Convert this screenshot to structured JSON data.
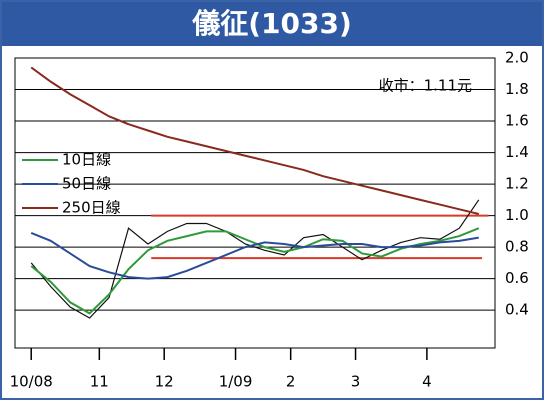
{
  "chart_data": {
    "type": "line",
    "title": "儀征(1033)",
    "annotation": "收市：1.11元",
    "xlim": [
      -5,
      143
    ],
    "ylim": [
      0.16,
      2.0
    ],
    "xticks": [
      {
        "value": 0,
        "label": "10/08"
      },
      {
        "value": 21,
        "label": "11"
      },
      {
        "value": 41,
        "label": "12"
      },
      {
        "value": 63,
        "label": "1/09"
      },
      {
        "value": 80,
        "label": "2"
      },
      {
        "value": 100,
        "label": "3"
      },
      {
        "value": 122,
        "label": "4"
      }
    ],
    "yticks": [
      0.4,
      0.6,
      0.8,
      {
        "value": 1.0,
        "label": "1.0"
      },
      1.2,
      1.4,
      1.6,
      1.8,
      {
        "value": 2.0,
        "label": "2.0"
      }
    ],
    "grid": true,
    "legend": "upper left",
    "x": [
      0,
      6,
      12,
      18,
      24,
      30,
      36,
      42,
      48,
      54,
      60,
      66,
      72,
      78,
      84,
      90,
      96,
      102,
      108,
      114,
      120,
      126,
      132,
      138
    ],
    "price": {
      "color": "#111111",
      "values": [
        0.7,
        0.55,
        0.42,
        0.35,
        0.48,
        0.92,
        0.82,
        0.9,
        0.95,
        0.95,
        0.9,
        0.82,
        0.78,
        0.75,
        0.86,
        0.88,
        0.8,
        0.72,
        0.78,
        0.83,
        0.86,
        0.85,
        0.92,
        1.1
      ]
    },
    "series": [
      {
        "name": "10日線",
        "color": "#2e9a3a",
        "values": [
          0.68,
          0.58,
          0.45,
          0.38,
          0.5,
          0.66,
          0.78,
          0.84,
          0.87,
          0.9,
          0.9,
          0.85,
          0.8,
          0.77,
          0.8,
          0.85,
          0.84,
          0.76,
          0.74,
          0.79,
          0.82,
          0.84,
          0.87,
          0.92
        ]
      },
      {
        "name": "50日線",
        "color": "#2b4c9b",
        "values": [
          0.89,
          0.84,
          0.76,
          0.68,
          0.64,
          0.61,
          0.6,
          0.61,
          0.65,
          0.7,
          0.75,
          0.8,
          0.83,
          0.82,
          0.8,
          0.81,
          0.82,
          0.82,
          0.8,
          0.8,
          0.81,
          0.83,
          0.84,
          0.86
        ]
      },
      {
        "name": "250日線",
        "color": "#8a2a1e",
        "values": [
          1.94,
          1.85,
          1.77,
          1.7,
          1.63,
          1.58,
          1.54,
          1.5,
          1.47,
          1.44,
          1.41,
          1.38,
          1.35,
          1.32,
          1.29,
          1.25,
          1.22,
          1.19,
          1.16,
          1.13,
          1.1,
          1.07,
          1.04,
          1.01
        ]
      }
    ],
    "hlines": [
      {
        "value": 1.0,
        "x": [
          37,
          141
        ],
        "color": "#d83a2a"
      },
      {
        "value": 0.73,
        "x": [
          37,
          139
        ],
        "color": "#d83a2a"
      }
    ]
  }
}
